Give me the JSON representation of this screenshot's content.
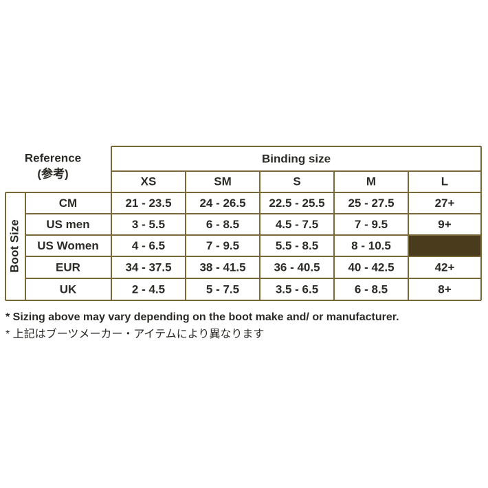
{
  "reference": {
    "title": "Reference",
    "subtitle": "(参考)"
  },
  "table": {
    "binding_size": "Binding size",
    "boot_size": "Boot Size",
    "columns": [
      "XS",
      "SM",
      "S",
      "M",
      "L"
    ],
    "rows": [
      {
        "label": "CM",
        "cells": [
          "21 - 23.5",
          "24 - 26.5",
          "22.5 - 25.5",
          "25 - 27.5",
          "27+"
        ]
      },
      {
        "label": "US men",
        "cells": [
          "3 - 5.5",
          "6 - 8.5",
          "4.5 - 7.5",
          "7 - 9.5",
          "9+"
        ]
      },
      {
        "label": "US Women",
        "cells": [
          "4 - 6.5",
          "7 - 9.5",
          "5.5 - 8.5",
          "8 - 10.5",
          null
        ]
      },
      {
        "label": "EUR",
        "cells": [
          "34 - 37.5",
          "38 - 41.5",
          "36 - 40.5",
          "40 - 42.5",
          "42+"
        ]
      },
      {
        "label": "UK",
        "cells": [
          "2 - 4.5",
          "5 - 7.5",
          "3.5 - 6.5",
          "6 - 8.5",
          "8+"
        ]
      }
    ]
  },
  "notes": [
    "* Sizing above may vary depending on the boot make and/ or manufacturer.",
    "* 上記はブーツメーカー・アイテムにより異なります"
  ]
}
